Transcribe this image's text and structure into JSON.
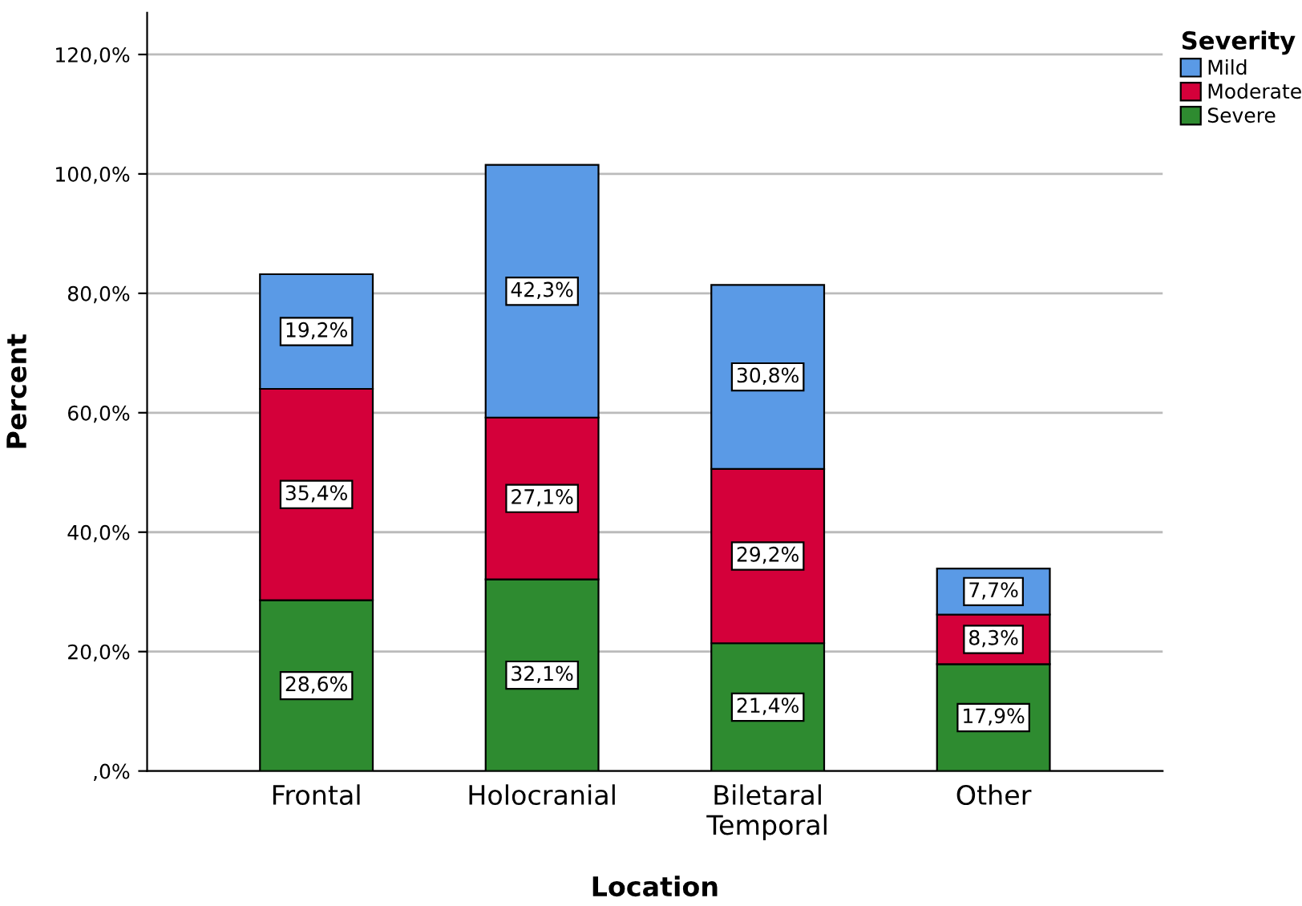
{
  "chart_data": {
    "type": "bar",
    "stacked": true,
    "xlabel": "Location",
    "ylabel": "Percent",
    "legend_title": "Severity",
    "legend": "top right",
    "grid": "y",
    "categories": [
      "Frontal",
      "Holocranial",
      "Biletaral\nTemporal",
      "Other"
    ],
    "ylim": [
      0,
      127
    ],
    "yticks": [
      {
        "value": 0,
        "label": ",0%"
      },
      {
        "value": 20,
        "label": "20,0%"
      },
      {
        "value": 40,
        "label": "40,0%"
      },
      {
        "value": 60,
        "label": "60,0%"
      },
      {
        "value": 80,
        "label": "80,0%"
      },
      {
        "value": 100,
        "label": "100,0%"
      },
      {
        "value": 120,
        "label": "120,0%"
      }
    ],
    "series": [
      {
        "name": "Severe",
        "color": "#2e8b30",
        "values": [
          28.6,
          32.1,
          21.4,
          17.9
        ],
        "value_labels": [
          "28,6%",
          "32,1%",
          "21,4%",
          "17,9%"
        ]
      },
      {
        "name": "Moderate",
        "color": "#d4003a",
        "values": [
          35.4,
          27.1,
          29.2,
          8.3
        ],
        "value_labels": [
          "35,4%",
          "27,1%",
          "29,2%",
          "8,3%"
        ]
      },
      {
        "name": "Mild",
        "color": "#5a9ae6",
        "values": [
          19.2,
          42.3,
          30.8,
          7.7
        ],
        "value_labels": [
          "19,2%",
          "42,3%",
          "30,8%",
          "7,7%"
        ]
      }
    ]
  }
}
